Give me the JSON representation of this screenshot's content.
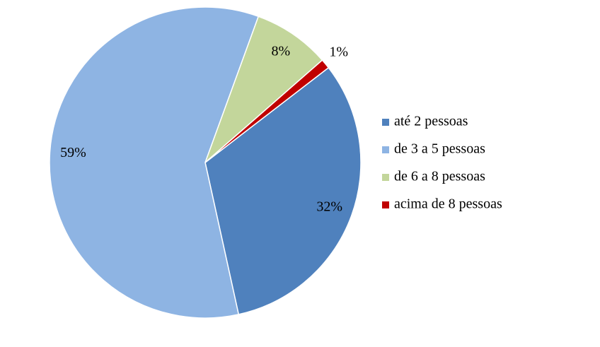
{
  "chart_data": {
    "type": "pie",
    "categories": [
      "até 2 pessoas",
      "de 3 a 5 pessoas",
      "de 6 a 8 pessoas",
      "acima de 8 pessoas"
    ],
    "values": [
      32,
      59,
      8,
      1
    ],
    "value_labels": [
      "32%",
      "59%",
      "8%",
      "1%"
    ],
    "colors": [
      "#4f81bd",
      "#8eb4e3",
      "#c3d69b",
      "#c00000"
    ],
    "legend": "right"
  }
}
